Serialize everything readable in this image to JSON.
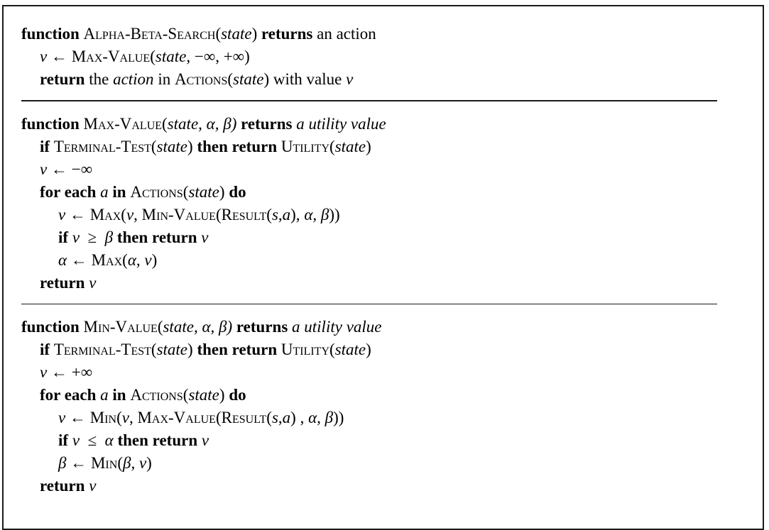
{
  "alpha_beta_search": {
    "l1": {
      "kw1": "function",
      "name": "Alpha-Beta-Search",
      "open": "(",
      "arg": "state",
      "close": ")",
      "kw2": "returns",
      "tail": "an action"
    },
    "l2": {
      "v": "v",
      "arrow": " ← ",
      "fn": "Max-Value",
      "open": "(",
      "arg": "state",
      "rest": ", −∞, +∞)"
    },
    "l3": {
      "kw": "return",
      "t1": " the ",
      "action": "action",
      "t2": " in ",
      "fn": "Actions",
      "open": "(",
      "arg": "state",
      "close": ")",
      "t3": " with value ",
      "v": "v"
    }
  },
  "max_value": {
    "l1": {
      "kw1": "function",
      "name": "Max-Value",
      "open": "(",
      "arg": "state",
      "params": ", α, β)",
      "kw2": "returns",
      "tail": "a utility value"
    },
    "l2": {
      "kw1": "if",
      "fn1": "Terminal-Test",
      "open1": "(",
      "arg1": "state",
      "close1": ")",
      "kw2": "then return",
      "fn2": "Utility",
      "open2": "(",
      "arg2": "state",
      "close2": ")"
    },
    "l3": {
      "v": "v",
      "rest": " ← −∞"
    },
    "l4": {
      "kw1": "for each",
      "a": "a",
      "kw2": "in",
      "fn": "Actions",
      "open": "(",
      "arg": "state",
      "close": ")",
      "kw3": "do"
    },
    "l5": {
      "v": "v",
      "arrow": " ← ",
      "fn1": "Max",
      "t1": "(",
      "v2": "v",
      "t2": ", ",
      "fn2": "Min-Value",
      "t3": "(",
      "fn3": "Result",
      "t4": "(",
      "sa": "s",
      "t5": ",",
      "aa": "a",
      "t6": "), ",
      "ab": "α, β",
      "t7": "))"
    },
    "l6": {
      "kw1": "if",
      "cond": "v  ≥  β",
      "kw2": "then return",
      "v": "v"
    },
    "l7": {
      "alpha": "α",
      "arrow": " ← ",
      "fn": "Max",
      "t1": "(",
      "args": "α, v",
      "t2": ")"
    },
    "l8": {
      "kw": "return",
      "v": "v"
    }
  },
  "min_value": {
    "l1": {
      "kw1": "function",
      "name": "Min-Value",
      "open": "(",
      "arg": "state",
      "params": ", α, β)",
      "kw2": "returns",
      "tail": "a utility value"
    },
    "l2": {
      "kw1": "if",
      "fn1": "Terminal-Test",
      "open1": "(",
      "arg1": "state",
      "close1": ")",
      "kw2": "then return",
      "fn2": "Utility",
      "open2": "(",
      "arg2": "state",
      "close2": ")"
    },
    "l3": {
      "v": "v",
      "rest": " ← +∞"
    },
    "l4": {
      "kw1": "for each",
      "a": "a",
      "kw2": "in",
      "fn": "Actions",
      "open": "(",
      "arg": "state",
      "close": ")",
      "kw3": "do"
    },
    "l5": {
      "v": "v",
      "arrow": " ← ",
      "fn1": "Min",
      "t1": "(",
      "v2": "v",
      "t2": ", ",
      "fn2": "Max-Value",
      "t3": "(",
      "fn3": "Result",
      "t4": "(",
      "sa": "s",
      "t5": ",",
      "aa": "a",
      "t6": ") , ",
      "ab": "α, β",
      "t7": "))"
    },
    "l6": {
      "kw1": "if",
      "cond": "v  ≤  α",
      "kw2": "then return",
      "v": "v"
    },
    "l7": {
      "beta": "β",
      "arrow": " ← ",
      "fn": "Min",
      "t1": "(",
      "args": "β, v",
      "t2": ")"
    },
    "l8": {
      "kw": "return",
      "v": "v"
    }
  }
}
